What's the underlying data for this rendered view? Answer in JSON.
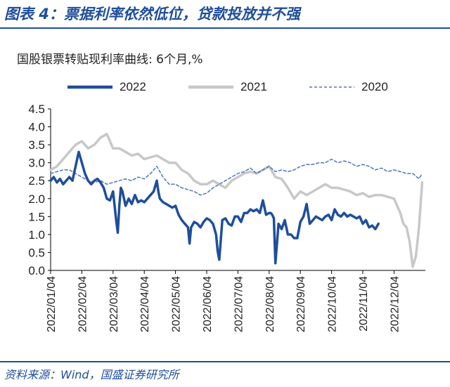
{
  "header": {
    "figure_title": "图表 4：票据利率依然低位，贷款投放并不强",
    "source": "资料来源：Wind，国盛证券研究所"
  },
  "chart_data": {
    "type": "line",
    "title": "国股银票转贴现利率曲线: 6个月,%",
    "ylim": [
      0,
      4.5
    ],
    "yticks": [
      "0.0",
      "0.5",
      "1.0",
      "1.5",
      "2.0",
      "2.5",
      "3.0",
      "3.5",
      "4.0",
      "4.5"
    ],
    "xlim": [
      0,
      12
    ],
    "xticks": [
      "2022/01/04",
      "2022/02/04",
      "2022/03/04",
      "2022/04/04",
      "2022/05/04",
      "2022/06/04",
      "2022/07/04",
      "2022/08/04",
      "2022/09/04",
      "2022/10/04",
      "2022/11/04",
      "2022/12/04"
    ],
    "x_unit": "month index (0 = Jan 4)",
    "legend_position": "top",
    "series": [
      {
        "name": "2022",
        "color": "#1f4e9c",
        "style": "solid-thick",
        "x": [
          0,
          0.1,
          0.2,
          0.3,
          0.4,
          0.5,
          0.6,
          0.7,
          0.8,
          0.9,
          1.0,
          1.1,
          1.2,
          1.3,
          1.4,
          1.5,
          1.6,
          1.7,
          1.8,
          1.9,
          2.0,
          2.1,
          2.15,
          2.2,
          2.25,
          2.3,
          2.4,
          2.5,
          2.6,
          2.7,
          2.8,
          2.9,
          3.0,
          3.1,
          3.2,
          3.3,
          3.4,
          3.45,
          3.5,
          3.6,
          3.7,
          3.8,
          3.9,
          4.0,
          4.1,
          4.2,
          4.3,
          4.4,
          4.45,
          4.5,
          4.6,
          4.7,
          4.8,
          4.9,
          5.0,
          5.1,
          5.2,
          5.3,
          5.35,
          5.4,
          5.45,
          5.5,
          5.6,
          5.7,
          5.8,
          5.9,
          6.0,
          6.1,
          6.2,
          6.3,
          6.4,
          6.5,
          6.6,
          6.7,
          6.8,
          6.9,
          7.0,
          7.05,
          7.1,
          7.15,
          7.2,
          7.3,
          7.4,
          7.5,
          7.6,
          7.7,
          7.8,
          7.9,
          8.0,
          8.1,
          8.2,
          8.3,
          8.4,
          8.5,
          8.6,
          8.7,
          8.8,
          8.9,
          9.0,
          9.1,
          9.2,
          9.3,
          9.4,
          9.5,
          9.6,
          9.7,
          9.8,
          9.9,
          10.0,
          10.1,
          10.2,
          10.3,
          10.4,
          10.5
        ],
        "values": [
          2.5,
          2.6,
          2.45,
          2.55,
          2.4,
          2.5,
          2.6,
          2.5,
          2.9,
          3.3,
          3.0,
          2.7,
          2.5,
          2.4,
          2.5,
          2.55,
          2.45,
          2.3,
          2.0,
          1.95,
          2.2,
          1.4,
          1.05,
          1.8,
          2.3,
          2.2,
          1.8,
          2.0,
          1.85,
          2.1,
          1.9,
          1.95,
          1.9,
          2.0,
          2.1,
          2.2,
          2.5,
          2.2,
          2.0,
          1.9,
          1.85,
          1.8,
          1.75,
          1.8,
          1.55,
          1.4,
          1.3,
          1.2,
          0.75,
          1.2,
          1.35,
          1.3,
          1.2,
          1.35,
          1.45,
          1.4,
          1.3,
          1.0,
          0.55,
          0.3,
          0.85,
          1.4,
          1.45,
          1.3,
          1.25,
          1.5,
          1.5,
          1.35,
          1.6,
          1.6,
          1.7,
          1.65,
          1.7,
          1.6,
          1.95,
          1.55,
          1.6,
          1.6,
          1.55,
          1.45,
          0.2,
          1.3,
          1.15,
          1.4,
          1.0,
          1.0,
          0.9,
          0.9,
          1.35,
          1.5,
          1.85,
          1.3,
          1.4,
          1.5,
          1.45,
          1.4,
          1.5,
          1.55,
          1.4,
          1.7,
          1.55,
          1.5,
          1.6,
          1.5,
          1.55,
          1.5,
          1.45,
          1.5,
          1.3,
          1.4,
          1.2,
          1.25,
          1.15,
          1.3
        ]
      },
      {
        "name": "2021",
        "color": "#c8c8c8",
        "style": "solid-thick",
        "x": [
          0,
          0.2,
          0.4,
          0.6,
          0.8,
          1.0,
          1.2,
          1.4,
          1.6,
          1.8,
          2.0,
          2.2,
          2.4,
          2.6,
          2.8,
          3.0,
          3.2,
          3.4,
          3.6,
          3.8,
          4.0,
          4.2,
          4.4,
          4.6,
          4.8,
          5.0,
          5.2,
          5.4,
          5.6,
          5.8,
          6.0,
          6.2,
          6.4,
          6.6,
          6.8,
          7.0,
          7.2,
          7.4,
          7.6,
          7.8,
          8.0,
          8.2,
          8.4,
          8.6,
          8.8,
          9.0,
          9.2,
          9.4,
          9.6,
          9.8,
          10.0,
          10.2,
          10.4,
          10.6,
          10.8,
          11.0,
          11.1,
          11.2,
          11.3,
          11.4,
          11.5,
          11.6,
          11.7,
          11.8,
          11.9
        ],
        "values": [
          2.8,
          2.9,
          3.1,
          3.3,
          3.5,
          3.6,
          3.4,
          3.5,
          3.7,
          3.8,
          3.4,
          3.4,
          3.3,
          3.2,
          3.25,
          3.1,
          3.15,
          3.2,
          3.1,
          3.0,
          3.0,
          2.8,
          2.7,
          2.5,
          2.4,
          2.4,
          2.5,
          2.4,
          2.3,
          2.5,
          2.6,
          2.7,
          2.75,
          2.7,
          2.8,
          2.9,
          2.6,
          2.55,
          2.3,
          2.0,
          2.2,
          2.1,
          2.2,
          2.3,
          2.4,
          2.3,
          2.3,
          2.25,
          2.2,
          2.1,
          2.15,
          2.05,
          2.1,
          2.1,
          2.05,
          2.0,
          1.8,
          1.6,
          1.3,
          1.2,
          0.8,
          0.1,
          0.4,
          1.2,
          2.45
        ]
      },
      {
        "name": "2020",
        "color": "#4a76c6",
        "style": "dashed",
        "x": [
          0,
          0.2,
          0.4,
          0.6,
          0.8,
          1.0,
          1.2,
          1.4,
          1.6,
          1.8,
          2.0,
          2.2,
          2.4,
          2.6,
          2.8,
          3.0,
          3.2,
          3.4,
          3.6,
          3.8,
          4.0,
          4.2,
          4.4,
          4.6,
          4.8,
          5.0,
          5.2,
          5.4,
          5.6,
          5.8,
          6.0,
          6.2,
          6.4,
          6.6,
          6.8,
          7.0,
          7.2,
          7.4,
          7.6,
          7.8,
          8.0,
          8.2,
          8.4,
          8.6,
          8.8,
          9.0,
          9.2,
          9.4,
          9.6,
          9.8,
          10.0,
          10.2,
          10.4,
          10.6,
          10.8,
          11.0,
          11.2,
          11.4,
          11.6,
          11.8,
          11.9
        ],
        "values": [
          2.7,
          2.75,
          2.8,
          2.8,
          2.7,
          2.6,
          2.5,
          2.45,
          2.5,
          2.4,
          2.45,
          2.5,
          2.55,
          2.5,
          2.6,
          2.55,
          2.7,
          2.9,
          2.6,
          2.4,
          2.4,
          2.3,
          2.25,
          2.2,
          2.1,
          2.15,
          2.3,
          2.4,
          2.5,
          2.6,
          2.7,
          2.75,
          2.85,
          2.7,
          2.8,
          2.9,
          2.75,
          2.8,
          2.75,
          2.8,
          2.9,
          2.95,
          2.95,
          3.0,
          3.0,
          3.1,
          3.0,
          3.05,
          3.0,
          2.9,
          2.95,
          2.9,
          2.8,
          2.85,
          2.75,
          2.8,
          2.75,
          2.7,
          2.7,
          2.55,
          2.7
        ]
      }
    ]
  }
}
